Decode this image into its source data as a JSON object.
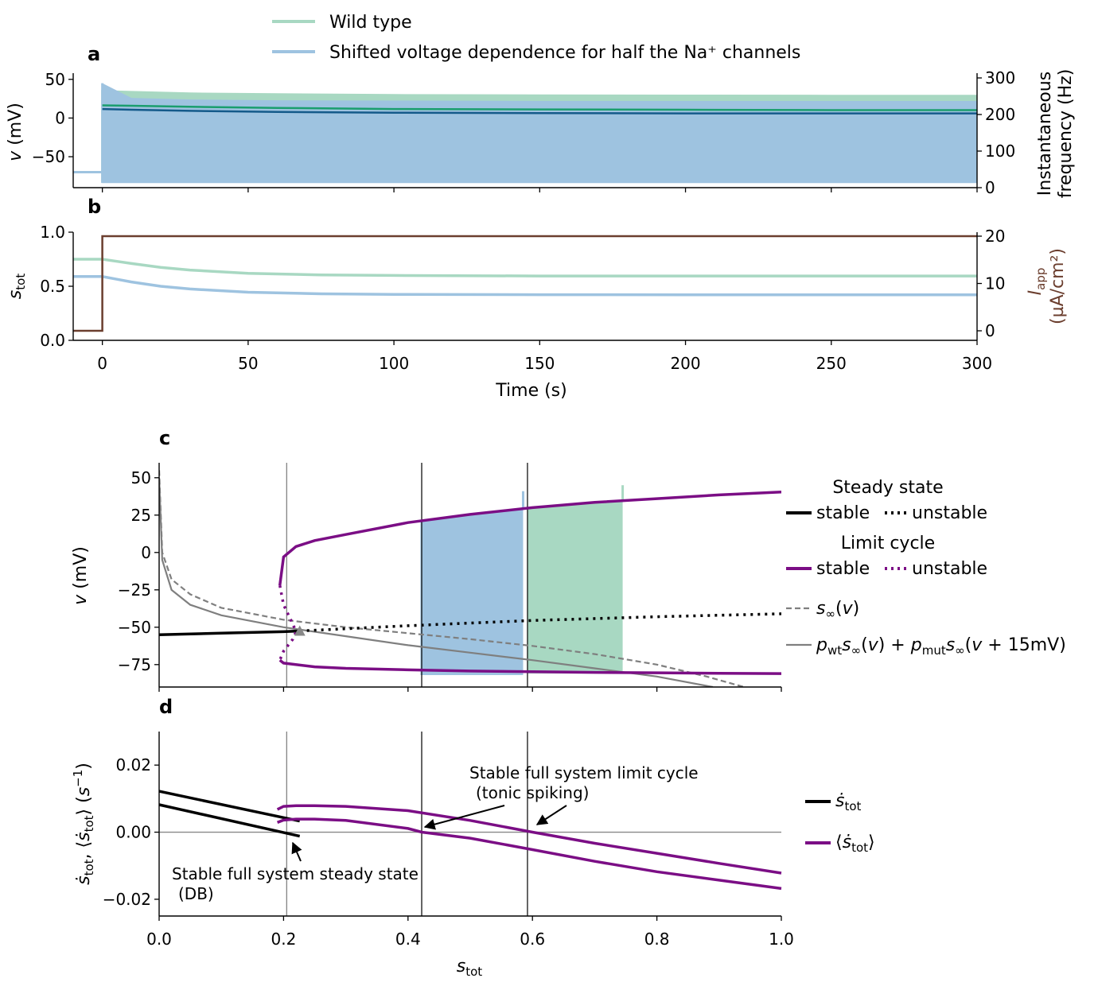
{
  "colors": {
    "wild_type": "#a8d8c2",
    "mutant": "#9ec3e0",
    "wt_freq": "#1a9e6e",
    "mut_freq": "#145a8a",
    "iapp": "#6b3e2e",
    "limit_cycle": "#7b0e85",
    "steady": "#000000",
    "sinf": "#7f7f7f",
    "vline": "#000000"
  },
  "legend_top": {
    "entries": [
      {
        "label": "Wild type",
        "color": "#a8d8c2"
      },
      {
        "label": "Shifted voltage dependence for half the Na⁺ channels",
        "color": "#9ec3e0"
      }
    ]
  },
  "chart_data": [
    {
      "panel": "a",
      "type": "line",
      "xlabel": "",
      "ylabel": "v (mV)",
      "ylabel_right": "Instantaneous frequency (Hz)",
      "xlim": [
        -10,
        300
      ],
      "ylim": [
        -90,
        58
      ],
      "ylim_right": [
        0,
        300
      ],
      "yticks": [
        -50,
        0,
        50
      ],
      "yticks_right": [
        0,
        100,
        200,
        300
      ],
      "series": [
        {
          "name": "Wild type voltage envelope",
          "kind": "band",
          "x": [
            -10,
            0,
            0,
            10,
            30,
            60,
            100,
            150,
            200,
            250,
            300
          ],
          "upper": [
            -70,
            -70,
            36,
            35,
            33,
            32,
            31,
            30.5,
            30.2,
            30,
            30
          ],
          "lower": [
            -70,
            -70,
            -83,
            -83,
            -83,
            -83,
            -83,
            -83,
            -83,
            -83,
            -83
          ]
        },
        {
          "name": "Mutant voltage envelope",
          "kind": "band",
          "x": [
            -10,
            0,
            0,
            10,
            30,
            60,
            100,
            150,
            200,
            250,
            300
          ],
          "upper": [
            -70,
            -70,
            45,
            26,
            24,
            23,
            22.5,
            22,
            22,
            22,
            22
          ],
          "lower": [
            -70,
            -70,
            -84,
            -84,
            -84,
            -84,
            -84,
            -84,
            -84,
            -84,
            -84
          ]
        },
        {
          "name": "Wild type frequency",
          "axis": "right",
          "x": [
            0,
            10,
            30,
            60,
            100,
            150,
            200,
            250,
            300
          ],
          "y": [
            225,
            224,
            221,
            218,
            215,
            214,
            213,
            212,
            212
          ]
        },
        {
          "name": "Mutant frequency",
          "axis": "right",
          "x": [
            0,
            10,
            30,
            60,
            100,
            150,
            200,
            250,
            300
          ],
          "y": [
            215,
            213,
            210,
            207,
            205,
            204,
            203,
            203,
            203
          ]
        }
      ]
    },
    {
      "panel": "b",
      "type": "line",
      "xlabel": "Time (s)",
      "ylabel": "s_tot",
      "ylabel_right": "I_app (µA/cm²)",
      "xlim": [
        -10,
        300
      ],
      "ylim": [
        0,
        1
      ],
      "ylim_right": [
        -1,
        21
      ],
      "xticks": [
        0,
        50,
        100,
        150,
        200,
        250,
        300
      ],
      "yticks": [
        0.0,
        0.5,
        1.0
      ],
      "yticks_right": [
        0,
        10,
        20
      ],
      "series": [
        {
          "name": "Wild type s_tot",
          "x": [
            -10,
            0,
            5,
            10,
            20,
            30,
            50,
            75,
            100,
            150,
            200,
            250,
            300
          ],
          "y": [
            0.75,
            0.75,
            0.73,
            0.71,
            0.675,
            0.65,
            0.62,
            0.605,
            0.6,
            0.595,
            0.595,
            0.595,
            0.595
          ]
        },
        {
          "name": "Mutant s_tot",
          "x": [
            -10,
            0,
            5,
            10,
            20,
            30,
            50,
            75,
            100,
            150,
            200,
            250,
            300
          ],
          "y": [
            0.59,
            0.59,
            0.565,
            0.54,
            0.5,
            0.475,
            0.445,
            0.43,
            0.425,
            0.422,
            0.421,
            0.421,
            0.421
          ]
        },
        {
          "name": "I_app",
          "axis": "right",
          "x": [
            -10,
            0,
            0,
            300
          ],
          "y": [
            0,
            0,
            20,
            20
          ]
        }
      ]
    },
    {
      "panel": "c",
      "type": "line",
      "xlabel": "",
      "ylabel": "v (mV)",
      "xlim": [
        0,
        1
      ],
      "ylim": [
        -90,
        60
      ],
      "yticks": [
        -75,
        -50,
        -25,
        0,
        25,
        50
      ],
      "vlines": [
        0.205,
        0.422,
        0.592
      ],
      "legend": {
        "title_steady": "Steady state",
        "title_limit": "Limit cycle",
        "stable": "stable",
        "unstable": "unstable",
        "sinf": "s∞(v)",
        "mix": "p_wt s∞(v) + p_mut s∞(v + 15mV)"
      },
      "series": [
        {
          "name": "Stable steady state",
          "x": [
            0.0,
            0.1,
            0.2,
            0.226
          ],
          "y": [
            -55,
            -54,
            -53,
            -52.5
          ]
        },
        {
          "name": "Unstable steady state",
          "x": [
            0.226,
            0.4,
            0.6,
            0.8,
            1.0
          ],
          "y": [
            -52.5,
            -49,
            -45.5,
            -43,
            -41
          ]
        },
        {
          "name": "Stable limit cycle max",
          "x": [
            0.194,
            0.2,
            0.22,
            0.25,
            0.3,
            0.4,
            0.5,
            0.6,
            0.7,
            0.8,
            0.9,
            1.0
          ],
          "y": [
            -22,
            -3,
            4,
            8,
            12,
            20,
            25.5,
            30,
            33.5,
            36,
            38.5,
            40.5
          ]
        },
        {
          "name": "Stable limit cycle min",
          "x": [
            0.194,
            0.2,
            0.25,
            0.3,
            0.4,
            0.5,
            0.6,
            0.7,
            0.8,
            0.9,
            1.0
          ],
          "y": [
            -72,
            -74,
            -76.5,
            -77.5,
            -78.5,
            -79.3,
            -79.8,
            -80.2,
            -80.5,
            -80.8,
            -81
          ]
        },
        {
          "name": "Unstable limit cycle",
          "x": [
            0.194,
            0.2,
            0.215,
            0.22,
            0.215,
            0.2,
            0.194
          ],
          "y": [
            -22,
            -35,
            -48,
            -53,
            -58,
            -66,
            -72
          ]
        },
        {
          "name": "s∞(v)",
          "x": [
            0.0,
            0.005,
            0.02,
            0.05,
            0.1,
            0.2,
            0.3,
            0.4,
            0.5,
            0.6,
            0.7,
            0.8,
            0.88,
            0.94
          ],
          "y": [
            55,
            0,
            -18,
            -28,
            -37,
            -45,
            -50,
            -54,
            -58,
            -62.5,
            -68,
            -75,
            -83,
            -90
          ]
        },
        {
          "name": "p_wt s∞(v) + p_mut s∞(v + 15mV)",
          "x": [
            0.0,
            0.005,
            0.02,
            0.05,
            0.1,
            0.2,
            0.3,
            0.4,
            0.5,
            0.6,
            0.7,
            0.8,
            0.89
          ],
          "y": [
            50,
            -5,
            -25,
            -35,
            -42,
            -50,
            -56,
            -62,
            -67,
            -72,
            -77.5,
            -83,
            -90
          ]
        }
      ],
      "shaded_regions": [
        {
          "name": "Mutant trajectory",
          "x": [
            0.42,
            0.585
          ],
          "ymin": -82,
          "ymax_left": 21,
          "ymax_right": 29,
          "spike": 41
        },
        {
          "name": "Wild type trajectory",
          "x": [
            0.592,
            0.745
          ],
          "ymin": -81,
          "ymax_left": 30,
          "ymax_right": 35,
          "spike": 45
        }
      ],
      "marker": {
        "name": "Bifurcation point",
        "x": 0.226,
        "y": -52.5
      }
    },
    {
      "panel": "d",
      "type": "line",
      "xlabel": "s_tot",
      "ylabel": "ṡ_tot, ⟨ṡ_tot⟩ (s⁻¹)",
      "xlim": [
        0,
        1
      ],
      "ylim": [
        -0.025,
        0.03
      ],
      "xticks": [
        0.0,
        0.2,
        0.4,
        0.6,
        0.8,
        1.0
      ],
      "yticks": [
        -0.02,
        0.0,
        0.02
      ],
      "vlines": [
        0.205,
        0.422,
        0.592
      ],
      "legend": {
        "s_dot": "ṡ_tot",
        "avg_s_dot": "⟨ṡ_tot⟩"
      },
      "series": [
        {
          "name": "ṡ_tot (wild type)",
          "x": [
            0.0,
            0.226
          ],
          "y": [
            0.0122,
            0.0033
          ]
        },
        {
          "name": "ṡ_tot (mutant)",
          "x": [
            0.0,
            0.226
          ],
          "y": [
            0.0082,
            -0.0012
          ]
        },
        {
          "name": "⟨ṡ_tot⟩ (wild type)",
          "x": [
            0.19,
            0.2,
            0.22,
            0.25,
            0.3,
            0.4,
            0.5,
            0.6,
            0.7,
            0.8,
            0.9,
            1.0
          ],
          "y": [
            0.0068,
            0.0077,
            0.0079,
            0.0079,
            0.0077,
            0.0064,
            0.0035,
            0.0,
            -0.0033,
            -0.0063,
            -0.0093,
            -0.0122
          ]
        },
        {
          "name": "⟨ṡ_tot⟩ (mutant)",
          "x": [
            0.19,
            0.2,
            0.22,
            0.25,
            0.3,
            0.4,
            0.422,
            0.5,
            0.6,
            0.7,
            0.8,
            0.9,
            1.0
          ],
          "y": [
            0.0029,
            0.0036,
            0.0039,
            0.0039,
            0.0035,
            0.0011,
            0.0,
            -0.0018,
            -0.0052,
            -0.0087,
            -0.0118,
            -0.0143,
            -0.0168
          ]
        }
      ],
      "annotations": [
        {
          "line1": "Stable full system limit cycle",
          "line2": "(tonic spiking)"
        },
        {
          "line1": "Stable full system steady state",
          "line2": "(DB)"
        }
      ]
    }
  ]
}
